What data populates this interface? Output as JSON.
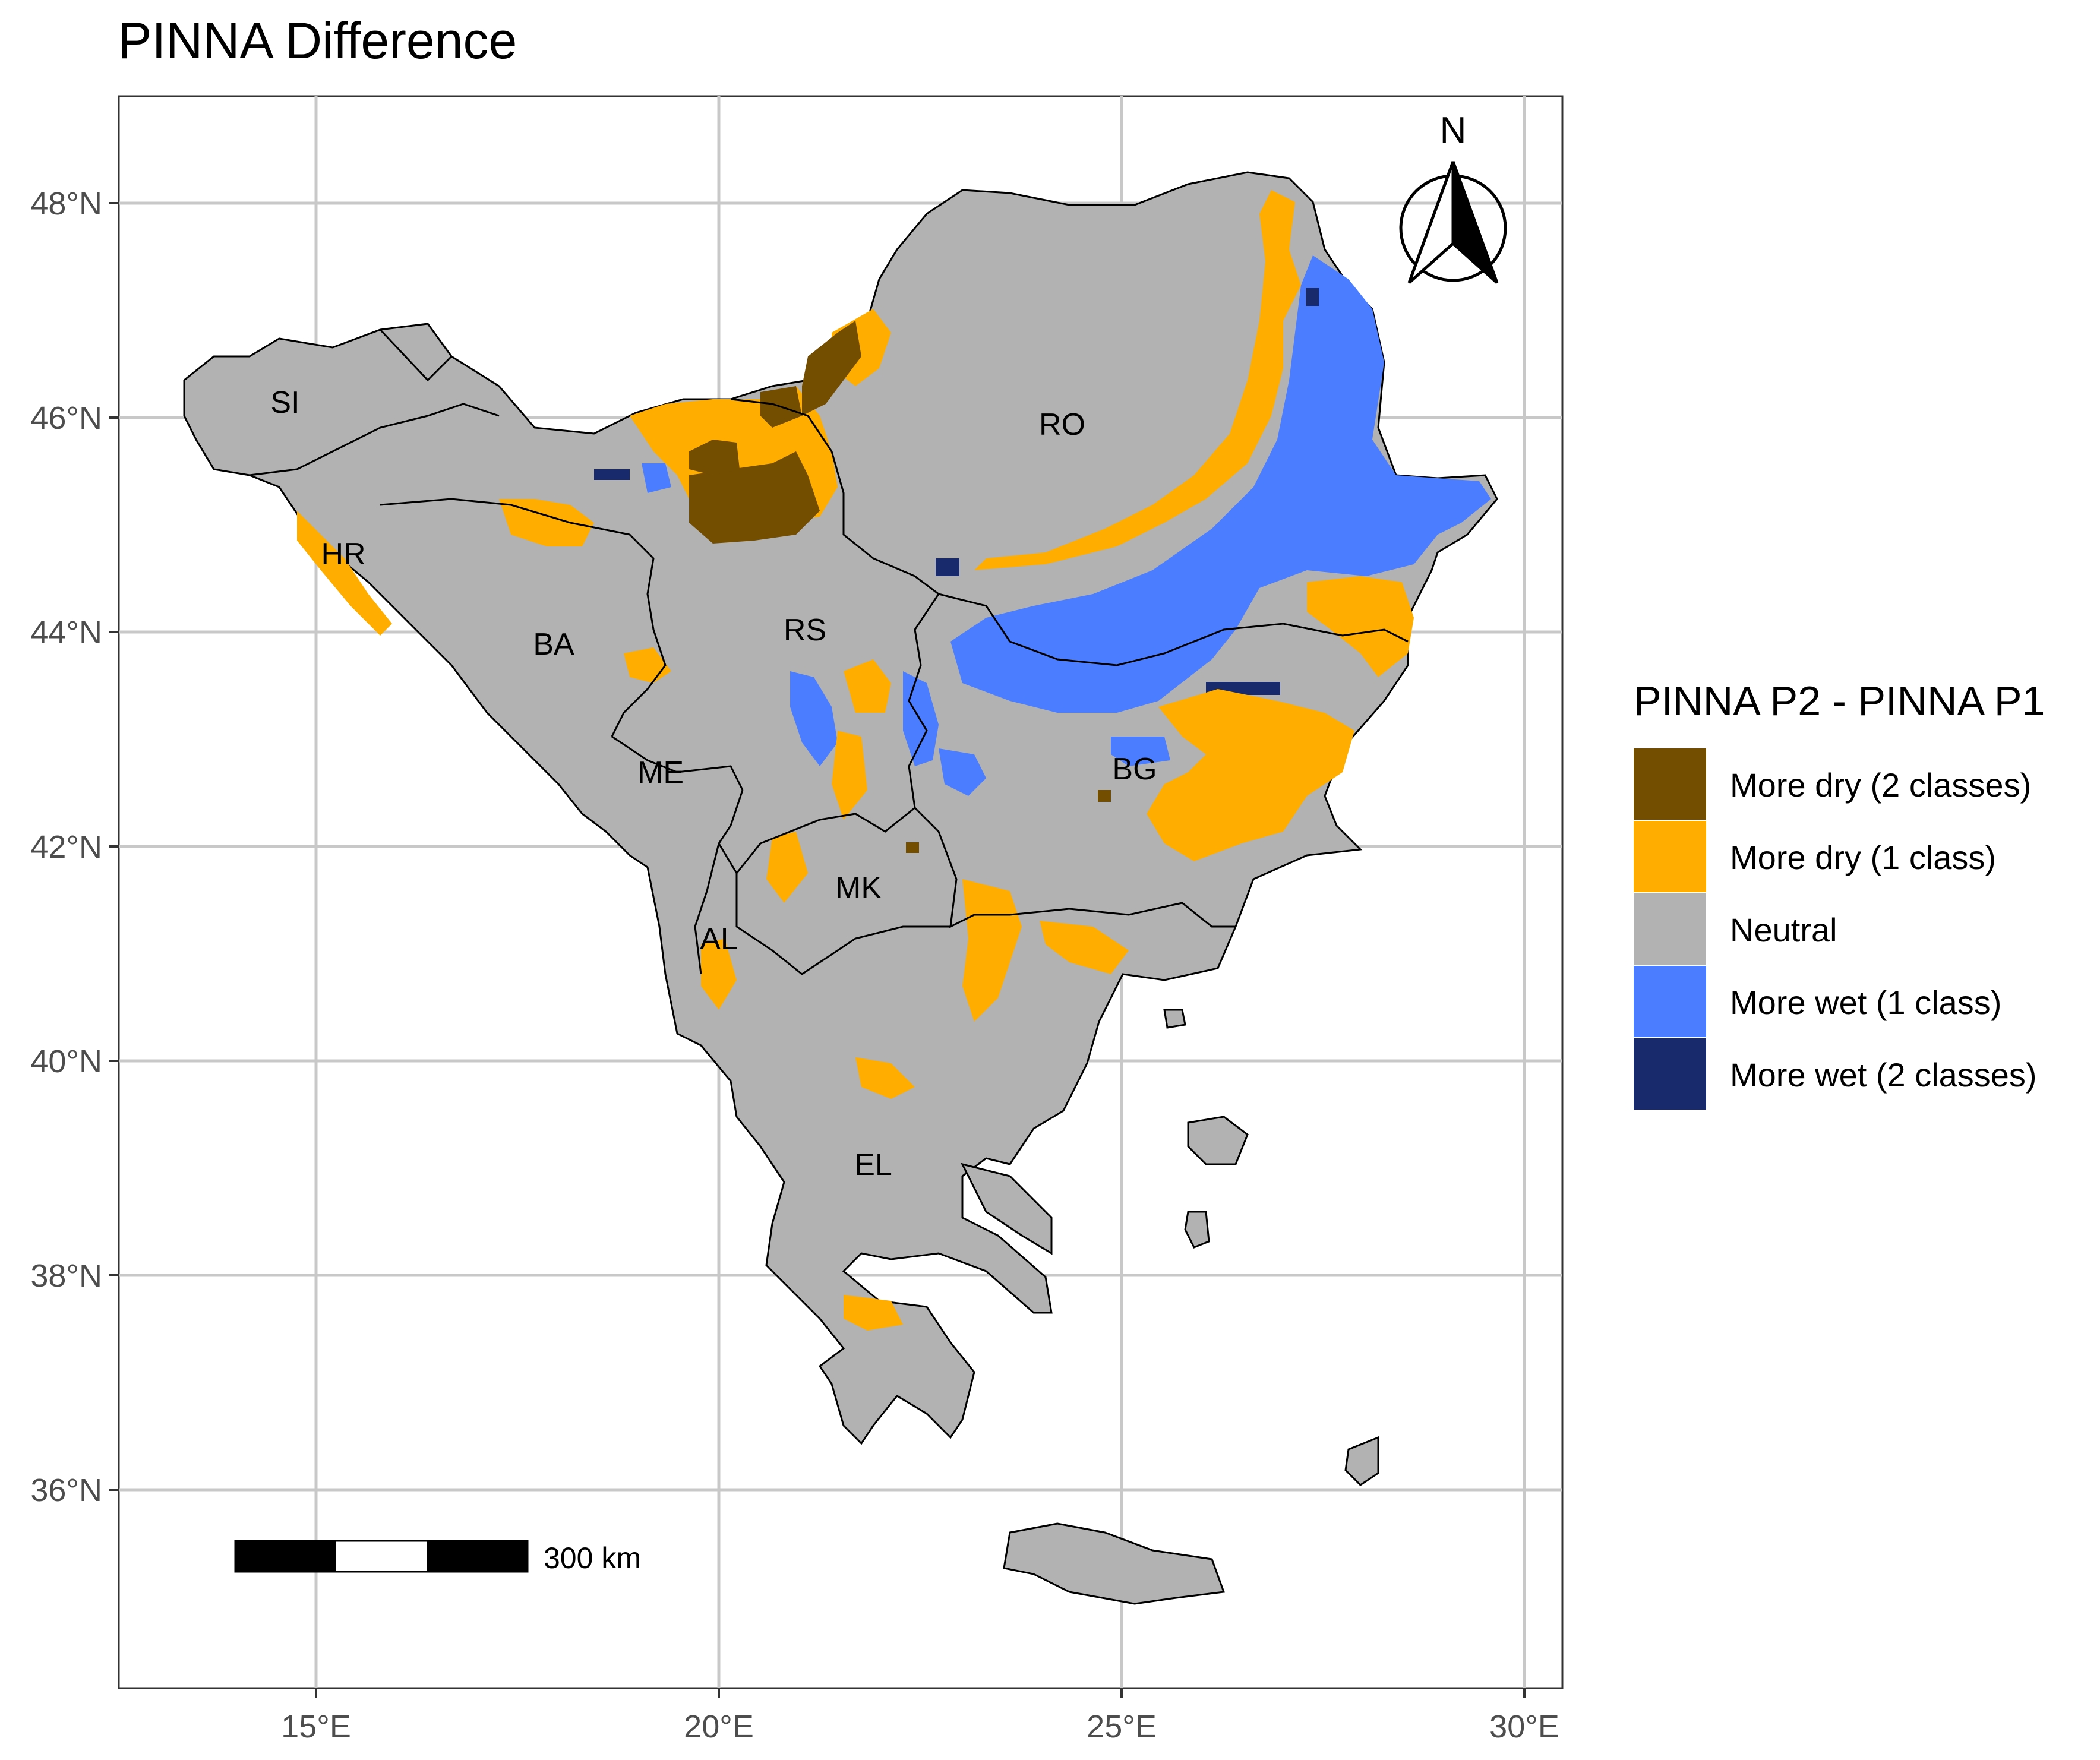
{
  "title": "PINNA Difference",
  "axes": {
    "x_ticks": [
      "15°E",
      "20°E",
      "25°E",
      "30°E"
    ],
    "y_ticks": [
      "48°N",
      "46°N",
      "44°N",
      "42°N",
      "40°N",
      "38°N",
      "36°N"
    ]
  },
  "north_arrow": {
    "label": "N"
  },
  "scale_bar": {
    "label": "300 km"
  },
  "country_labels": [
    "SI",
    "HR",
    "BA",
    "RS",
    "RO",
    "ME",
    "BG",
    "MK",
    "AL",
    "EL"
  ],
  "legend": {
    "title": "PINNA P2 - PINNA P1",
    "items": [
      {
        "label": "More dry (2 classes)",
        "color": "#734d00"
      },
      {
        "label": "More dry (1 class)",
        "color": "#ffae00"
      },
      {
        "label": "Neutral",
        "color": "#b2b2b2"
      },
      {
        "label": "More wet (1 class)",
        "color": "#4a7dff"
      },
      {
        "label": "More wet (2 classes)",
        "color": "#182a6b"
      }
    ]
  }
}
